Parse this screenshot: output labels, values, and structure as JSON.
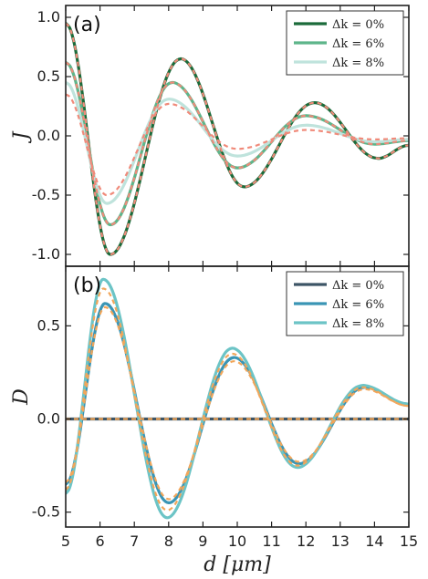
{
  "chart_data": [
    {
      "type": "line",
      "panel_label": "(a)",
      "ylabel": "J",
      "xlabel": "",
      "xlim": [
        5,
        15
      ],
      "ylim": [
        -1.1,
        1.1
      ],
      "yticks": [
        "-1.0",
        "-0.5",
        "0.0",
        "0.5",
        "1.0"
      ],
      "ytick_values": [
        -1.0,
        -0.5,
        0.0,
        0.5,
        1.0
      ],
      "xticks": [
        5,
        6,
        7,
        8,
        9,
        10,
        11,
        12,
        13,
        14,
        15
      ],
      "legend_position": "top-right",
      "series": [
        {
          "name": "Δk = 0%",
          "color": "#1b6b3a",
          "amplitude": 1.0,
          "style": "solid",
          "x": [
            5,
            6.3,
            8.35,
            10.2,
            12.25,
            14.1,
            15
          ],
          "y": [
            0.95,
            -1.0,
            0.65,
            -0.43,
            0.28,
            -0.19,
            -0.08
          ]
        },
        {
          "name": "Δk = 6%",
          "color": "#5db58a",
          "amplitude": 0.75,
          "style": "solid",
          "x": [
            5,
            6.3,
            8.1,
            10.0,
            12.0,
            14.0,
            15
          ],
          "y": [
            0.62,
            -0.75,
            0.45,
            -0.27,
            0.17,
            -0.07,
            -0.04
          ]
        },
        {
          "name": "Δk = 8%",
          "color": "#bfe3dc",
          "amplitude": 0.55,
          "style": "solid",
          "x": [
            5,
            6.2,
            8.0,
            10.0,
            12.0,
            14.0,
            15
          ],
          "y": [
            0.45,
            -0.57,
            0.31,
            -0.17,
            0.09,
            -0.05,
            -0.03
          ]
        }
      ],
      "overlay_series": [
        {
          "color": "#f08a7a",
          "style": "dashed",
          "x": [
            5,
            6.3,
            8.35,
            10.2,
            12.25,
            14.1,
            15
          ],
          "y": [
            0.95,
            -1.0,
            0.65,
            -0.43,
            0.28,
            -0.19,
            -0.08
          ]
        },
        {
          "color": "#f08a7a",
          "style": "dashed",
          "x": [
            5,
            6.3,
            8.1,
            10.0,
            12.0,
            14.0,
            15
          ],
          "y": [
            0.62,
            -0.75,
            0.45,
            -0.27,
            0.17,
            -0.07,
            -0.04
          ]
        },
        {
          "color": "#f08a7a",
          "style": "dashed",
          "x": [
            5,
            6.2,
            8.0,
            10.0,
            12.0,
            14.0,
            15
          ],
          "y": [
            0.35,
            -0.5,
            0.27,
            -0.11,
            0.05,
            -0.03,
            -0.02
          ]
        }
      ]
    },
    {
      "type": "line",
      "panel_label": "(b)",
      "ylabel": "D",
      "xlabel": "d [μm]",
      "xlim": [
        5,
        15
      ],
      "ylim": [
        -0.58,
        0.82
      ],
      "yticks": [
        "-0.5",
        "0.0",
        "0.5"
      ],
      "ytick_values": [
        -0.5,
        0.0,
        0.5
      ],
      "xticks": [
        5,
        6,
        7,
        8,
        9,
        10,
        11,
        12,
        13,
        14,
        15
      ],
      "legend_position": "top-right",
      "series": [
        {
          "name": "Δk = 0%",
          "color": "#3d5566",
          "style": "solid",
          "x": [
            5,
            15
          ],
          "y": [
            0.0,
            0.0
          ]
        },
        {
          "name": "Δk = 6%",
          "color": "#3a95b5",
          "style": "solid",
          "x": [
            5,
            6.15,
            8.0,
            9.9,
            11.8,
            13.7,
            15
          ],
          "y": [
            -0.35,
            0.62,
            -0.45,
            0.33,
            -0.24,
            0.17,
            0.08
          ]
        },
        {
          "name": "Δk = 8%",
          "color": "#6cc4c6",
          "style": "solid",
          "x": [
            5,
            6.1,
            7.95,
            9.85,
            11.75,
            13.65,
            15
          ],
          "y": [
            -0.4,
            0.75,
            -0.53,
            0.38,
            -0.26,
            0.18,
            0.08
          ]
        }
      ],
      "overlay_series": [
        {
          "color": "#f2a65a",
          "style": "dashed",
          "x": [
            5,
            15
          ],
          "y": [
            0.0,
            0.0
          ]
        },
        {
          "color": "#f2a65a",
          "style": "dashed",
          "x": [
            5,
            6.15,
            8.0,
            9.9,
            11.8,
            13.7,
            15
          ],
          "y": [
            -0.34,
            0.6,
            -0.43,
            0.31,
            -0.23,
            0.16,
            0.07
          ]
        },
        {
          "color": "#f2a65a",
          "style": "dashed",
          "x": [
            5,
            6.1,
            7.95,
            9.85,
            11.75,
            13.65,
            15
          ],
          "y": [
            -0.38,
            0.7,
            -0.49,
            0.35,
            -0.25,
            0.17,
            0.07
          ]
        }
      ]
    }
  ]
}
